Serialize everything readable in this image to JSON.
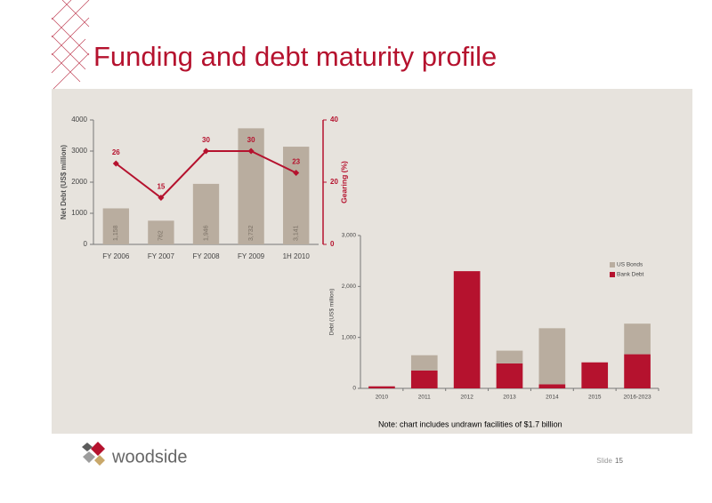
{
  "title": "Funding and debt maturity profile",
  "note": "Note: chart includes undrawn facilities of $1.7 billion",
  "logo_text": "woodside",
  "slide_label": "Slide",
  "slide_number": "15",
  "chart_data": [
    {
      "type": "combo",
      "categories": [
        "FY 2006",
        "FY 2007",
        "FY 2008",
        "FY 2009",
        "1H 2010"
      ],
      "y_label": "Net Debt (US$ million)",
      "y2_label": "Gearing (%)",
      "ylim": [
        0,
        4000
      ],
      "yticks": [
        0,
        1000,
        2000,
        3000,
        4000
      ],
      "y2lim": [
        0,
        40
      ],
      "y2ticks": [
        0,
        20,
        40
      ],
      "series": [
        {
          "kind": "bar",
          "color": "#b9ad9f",
          "values": [
            1158,
            762,
            1946,
            3732,
            3141
          ],
          "value_labels": [
            "1,158",
            "762",
            "1,946",
            "3,732",
            "3,141"
          ]
        },
        {
          "kind": "line",
          "axis": "y2",
          "color": "#b5122e",
          "values": [
            26,
            15,
            30,
            30,
            23
          ]
        }
      ]
    },
    {
      "type": "stacked_bar",
      "categories": [
        "2010",
        "2011",
        "2012",
        "2013",
        "2014",
        "2015",
        "2016-2023"
      ],
      "y_label": "Debt (US$ million)",
      "ylim": [
        0,
        3000
      ],
      "yticks": [
        0,
        {
          "value": 1000,
          "label": "1,000"
        },
        {
          "value": 2000,
          "label": "2,000"
        },
        {
          "value": 3000,
          "label": "3,000"
        }
      ],
      "legend": "upper right",
      "series": [
        {
          "name": "Bank Debt",
          "color": "#b5122e",
          "values": [
            40,
            350,
            2300,
            490,
            80,
            510,
            670
          ]
        },
        {
          "name": "US Bonds",
          "color": "#b9ad9f",
          "values": [
            0,
            300,
            0,
            250,
            1100,
            0,
            600
          ]
        }
      ]
    }
  ]
}
